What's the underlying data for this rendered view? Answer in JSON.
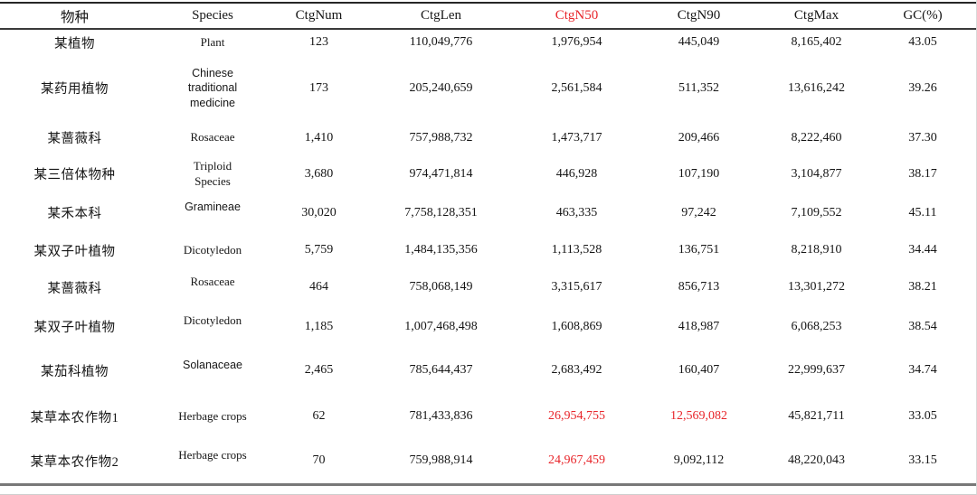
{
  "colors": {
    "highlight_red": "#e8262b",
    "text": "#161616",
    "rule_top": "#262626",
    "rule_bottom": "#787878"
  },
  "table": {
    "columns": [
      {
        "key": "cn_name",
        "label": "物种",
        "highlight": false
      },
      {
        "key": "species",
        "label": "Species",
        "highlight": false
      },
      {
        "key": "ctg_num",
        "label": "CtgNum",
        "highlight": false
      },
      {
        "key": "ctg_len",
        "label": "CtgLen",
        "highlight": false
      },
      {
        "key": "ctg_n50",
        "label": "CtgN50",
        "highlight": true
      },
      {
        "key": "ctg_n90",
        "label": "CtgN90",
        "highlight": false
      },
      {
        "key": "ctg_max",
        "label": "CtgMax",
        "highlight": false
      },
      {
        "key": "gc",
        "label": "GC(%)",
        "highlight": false
      }
    ],
    "rows": [
      {
        "cn_name": "某植物",
        "species": "Plant",
        "species_font": "serif",
        "species_lift": false,
        "ctg_num": "123",
        "ctg_len": "110,049,776",
        "ctg_n50": "1,976,954",
        "ctg_n90": "445,049",
        "ctg_max": "8,165,402",
        "gc": "43.05",
        "red_cells": []
      },
      {
        "cn_name": "某药用植物",
        "species": "Chinese\ntraditional\nmedicine",
        "species_font": "sans",
        "species_lift": false,
        "ctg_num": "173",
        "ctg_len": "205,240,659",
        "ctg_n50": "2,561,584",
        "ctg_n90": "511,352",
        "ctg_max": "13,616,242",
        "gc": "39.26",
        "red_cells": []
      },
      {
        "cn_name": "某蔷薇科",
        "species": "Rosaceae",
        "species_font": "serif",
        "species_lift": false,
        "ctg_num": "1,410",
        "ctg_len": "757,988,732",
        "ctg_n50": "1,473,717",
        "ctg_n90": "209,466",
        "ctg_max": "8,222,460",
        "gc": "37.30",
        "red_cells": []
      },
      {
        "cn_name": "某三倍体物种",
        "species": "Triploid\nSpecies",
        "species_font": "serif",
        "species_lift": false,
        "ctg_num": "3,680",
        "ctg_len": "974,471,814",
        "ctg_n50": "446,928",
        "ctg_n90": "107,190",
        "ctg_max": "3,104,877",
        "gc": "38.17",
        "red_cells": []
      },
      {
        "cn_name": "某禾本科",
        "species": "Gramineae",
        "species_font": "sans",
        "species_lift": true,
        "ctg_num": "30,020",
        "ctg_len": "7,758,128,351",
        "ctg_n50": "463,335",
        "ctg_n90": "97,242",
        "ctg_max": "7,109,552",
        "gc": "45.11",
        "red_cells": []
      },
      {
        "cn_name": "某双子叶植物",
        "species": "Dicotyledon",
        "species_font": "serif",
        "species_lift": false,
        "ctg_num": "5,759",
        "ctg_len": "1,484,135,356",
        "ctg_n50": "1,113,528",
        "ctg_n90": "136,751",
        "ctg_max": "8,218,910",
        "gc": "34.44",
        "red_cells": []
      },
      {
        "cn_name": "某蔷薇科",
        "species": "Rosaceae",
        "species_font": "serif",
        "species_lift": true,
        "ctg_num": "464",
        "ctg_len": "758,068,149",
        "ctg_n50": "3,315,617",
        "ctg_n90": "856,713",
        "ctg_max": "13,301,272",
        "gc": "38.21",
        "red_cells": []
      },
      {
        "cn_name": "某双子叶植物",
        "species": "Dicotyledon",
        "species_font": "serif",
        "species_lift": true,
        "ctg_num": "1,185",
        "ctg_len": "1,007,468,498",
        "ctg_n50": "1,608,869",
        "ctg_n90": "418,987",
        "ctg_max": "6,068,253",
        "gc": "38.54",
        "red_cells": []
      },
      {
        "cn_name": "某茄科植物",
        "species": "Solanaceae",
        "species_font": "sans",
        "species_lift": true,
        "ctg_num": "2,465",
        "ctg_len": "785,644,437",
        "ctg_n50": "2,683,492",
        "ctg_n90": "160,407",
        "ctg_max": "22,999,637",
        "gc": "34.74",
        "red_cells": []
      },
      {
        "cn_name": "某草本农作物1",
        "species": "Herbage crops",
        "species_font": "serif",
        "species_lift": false,
        "ctg_num": "62",
        "ctg_len": "781,433,836",
        "ctg_n50": "26,954,755",
        "ctg_n90": "12,569,082",
        "ctg_max": "45,821,711",
        "gc": "33.05",
        "red_cells": [
          "ctg_n50",
          "ctg_n90"
        ]
      },
      {
        "cn_name": "某草本农作物2",
        "species": "Herbage crops",
        "species_font": "serif",
        "species_lift": true,
        "ctg_num": "70",
        "ctg_len": "759,988,914",
        "ctg_n50": "24,967,459",
        "ctg_n90": "9,092,112",
        "ctg_max": "48,220,043",
        "gc": "33.15",
        "red_cells": [
          "ctg_n50"
        ]
      }
    ]
  }
}
